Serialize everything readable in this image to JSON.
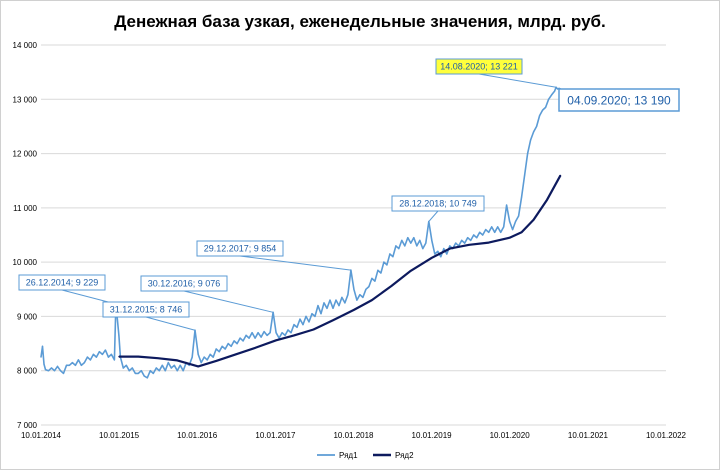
{
  "chart_data": {
    "type": "line",
    "title": "Денежная база узкая, еженедельные значения, млрд. руб.",
    "xlabel": "",
    "ylabel": "",
    "ylim": [
      7000,
      14000
    ],
    "xlim": [
      "2014-01-10",
      "2022-01-10"
    ],
    "y_ticks": [
      "7 000",
      "8 000",
      "9 000",
      "10 000",
      "11 000",
      "12 000",
      "13 000",
      "14 000"
    ],
    "x_ticks": [
      "10.01.2014",
      "10.01.2015",
      "10.01.2016",
      "10.01.2017",
      "10.01.2018",
      "10.01.2019",
      "10.01.2020",
      "10.01.2021",
      "10.01.2022"
    ],
    "grid": "horizontal",
    "legend_position": "bottom",
    "series": [
      {
        "name": "Ряд1",
        "color": "#5b9bd5",
        "points": [
          [
            "2014-01-10",
            8250
          ],
          [
            "2014-01-17",
            8450
          ],
          [
            "2014-01-24",
            8120
          ],
          [
            "2014-01-31",
            8020
          ],
          [
            "2014-02-14",
            8000
          ],
          [
            "2014-02-28",
            8050
          ],
          [
            "2014-03-14",
            8000
          ],
          [
            "2014-03-28",
            8080
          ],
          [
            "2014-04-11",
            8000
          ],
          [
            "2014-04-25",
            7950
          ],
          [
            "2014-05-09",
            8100
          ],
          [
            "2014-05-23",
            8100
          ],
          [
            "2014-06-06",
            8150
          ],
          [
            "2014-06-20",
            8100
          ],
          [
            "2014-07-04",
            8200
          ],
          [
            "2014-07-18",
            8100
          ],
          [
            "2014-08-01",
            8150
          ],
          [
            "2014-08-15",
            8250
          ],
          [
            "2014-08-29",
            8200
          ],
          [
            "2014-09-12",
            8300
          ],
          [
            "2014-09-26",
            8250
          ],
          [
            "2014-10-10",
            8350
          ],
          [
            "2014-10-24",
            8300
          ],
          [
            "2014-11-07",
            8380
          ],
          [
            "2014-11-21",
            8250
          ],
          [
            "2014-12-05",
            8300
          ],
          [
            "2014-12-19",
            8200
          ],
          [
            "2014-12-26",
            9229
          ],
          [
            "2015-01-09",
            8650
          ],
          [
            "2015-01-16",
            8250
          ],
          [
            "2015-01-30",
            8050
          ],
          [
            "2015-02-13",
            8100
          ],
          [
            "2015-02-27",
            8000
          ],
          [
            "2015-03-13",
            8050
          ],
          [
            "2015-03-27",
            7950
          ],
          [
            "2015-04-10",
            7950
          ],
          [
            "2015-04-24",
            8000
          ],
          [
            "2015-05-08",
            7900
          ],
          [
            "2015-05-22",
            7870
          ],
          [
            "2015-06-05",
            8000
          ],
          [
            "2015-06-19",
            7950
          ],
          [
            "2015-07-03",
            8050
          ],
          [
            "2015-07-17",
            8000
          ],
          [
            "2015-07-31",
            8100
          ],
          [
            "2015-08-14",
            8000
          ],
          [
            "2015-08-28",
            8150
          ],
          [
            "2015-09-11",
            8050
          ],
          [
            "2015-09-25",
            8100
          ],
          [
            "2015-10-09",
            8000
          ],
          [
            "2015-10-23",
            8100
          ],
          [
            "2015-11-06",
            8000
          ],
          [
            "2015-11-20",
            8150
          ],
          [
            "2015-12-04",
            8100
          ],
          [
            "2015-12-18",
            8250
          ],
          [
            "2015-12-31",
            8746
          ],
          [
            "2016-01-15",
            8300
          ],
          [
            "2016-01-29",
            8150
          ],
          [
            "2016-02-12",
            8250
          ],
          [
            "2016-02-26",
            8200
          ],
          [
            "2016-03-11",
            8300
          ],
          [
            "2016-03-25",
            8250
          ],
          [
            "2016-04-08",
            8400
          ],
          [
            "2016-04-22",
            8350
          ],
          [
            "2016-05-06",
            8450
          ],
          [
            "2016-05-20",
            8400
          ],
          [
            "2016-06-03",
            8500
          ],
          [
            "2016-06-17",
            8450
          ],
          [
            "2016-07-01",
            8550
          ],
          [
            "2016-07-15",
            8500
          ],
          [
            "2016-07-29",
            8600
          ],
          [
            "2016-08-12",
            8550
          ],
          [
            "2016-08-26",
            8650
          ],
          [
            "2016-09-09",
            8600
          ],
          [
            "2016-09-23",
            8700
          ],
          [
            "2016-10-07",
            8600
          ],
          [
            "2016-10-21",
            8700
          ],
          [
            "2016-11-04",
            8620
          ],
          [
            "2016-11-18",
            8720
          ],
          [
            "2016-12-02",
            8650
          ],
          [
            "2016-12-16",
            8700
          ],
          [
            "2016-12-30",
            9076
          ],
          [
            "2017-01-13",
            8700
          ],
          [
            "2017-01-27",
            8600
          ],
          [
            "2017-02-10",
            8700
          ],
          [
            "2017-02-24",
            8650
          ],
          [
            "2017-03-10",
            8750
          ],
          [
            "2017-03-24",
            8700
          ],
          [
            "2017-04-07",
            8850
          ],
          [
            "2017-04-21",
            8800
          ],
          [
            "2017-05-05",
            8950
          ],
          [
            "2017-05-19",
            8850
          ],
          [
            "2017-06-02",
            9000
          ],
          [
            "2017-06-16",
            8900
          ],
          [
            "2017-06-30",
            9050
          ],
          [
            "2017-07-14",
            9000
          ],
          [
            "2017-07-28",
            9200
          ],
          [
            "2017-08-11",
            9050
          ],
          [
            "2017-08-25",
            9250
          ],
          [
            "2017-09-08",
            9150
          ],
          [
            "2017-09-22",
            9300
          ],
          [
            "2017-10-06",
            9150
          ],
          [
            "2017-10-20",
            9300
          ],
          [
            "2017-11-03",
            9200
          ],
          [
            "2017-11-17",
            9350
          ],
          [
            "2017-12-01",
            9250
          ],
          [
            "2017-12-15",
            9400
          ],
          [
            "2017-12-29",
            9854
          ],
          [
            "2018-01-12",
            9500
          ],
          [
            "2018-01-26",
            9300
          ],
          [
            "2018-02-09",
            9400
          ],
          [
            "2018-02-23",
            9350
          ],
          [
            "2018-03-09",
            9500
          ],
          [
            "2018-03-23",
            9550
          ],
          [
            "2018-04-06",
            9700
          ],
          [
            "2018-04-20",
            9650
          ],
          [
            "2018-05-04",
            9850
          ],
          [
            "2018-05-18",
            9800
          ],
          [
            "2018-06-01",
            10000
          ],
          [
            "2018-06-15",
            9950
          ],
          [
            "2018-06-29",
            10150
          ],
          [
            "2018-07-13",
            10100
          ],
          [
            "2018-07-27",
            10300
          ],
          [
            "2018-08-10",
            10250
          ],
          [
            "2018-08-24",
            10400
          ],
          [
            "2018-09-07",
            10300
          ],
          [
            "2018-09-21",
            10450
          ],
          [
            "2018-10-05",
            10350
          ],
          [
            "2018-10-19",
            10450
          ],
          [
            "2018-11-02",
            10300
          ],
          [
            "2018-11-16",
            10400
          ],
          [
            "2018-11-30",
            10250
          ],
          [
            "2018-12-14",
            10350
          ],
          [
            "2018-12-28",
            10749
          ],
          [
            "2019-01-11",
            10400
          ],
          [
            "2019-01-25",
            10150
          ],
          [
            "2019-02-08",
            10200
          ],
          [
            "2019-02-22",
            10100
          ],
          [
            "2019-03-08",
            10250
          ],
          [
            "2019-03-22",
            10150
          ],
          [
            "2019-04-05",
            10300
          ],
          [
            "2019-04-19",
            10250
          ],
          [
            "2019-05-03",
            10350
          ],
          [
            "2019-05-17",
            10300
          ],
          [
            "2019-05-31",
            10400
          ],
          [
            "2019-06-14",
            10350
          ],
          [
            "2019-06-28",
            10450
          ],
          [
            "2019-07-12",
            10400
          ],
          [
            "2019-07-26",
            10500
          ],
          [
            "2019-08-09",
            10450
          ],
          [
            "2019-08-23",
            10550
          ],
          [
            "2019-09-06",
            10500
          ],
          [
            "2019-09-20",
            10600
          ],
          [
            "2019-10-04",
            10550
          ],
          [
            "2019-10-18",
            10650
          ],
          [
            "2019-11-01",
            10550
          ],
          [
            "2019-11-15",
            10650
          ],
          [
            "2019-11-29",
            10550
          ],
          [
            "2019-12-13",
            10650
          ],
          [
            "2019-12-27",
            11050
          ],
          [
            "2020-01-10",
            10750
          ],
          [
            "2020-01-24",
            10600
          ],
          [
            "2020-02-07",
            10750
          ],
          [
            "2020-02-21",
            10850
          ],
          [
            "2020-03-06",
            11200
          ],
          [
            "2020-03-20",
            11600
          ],
          [
            "2020-04-03",
            12000
          ],
          [
            "2020-04-17",
            12250
          ],
          [
            "2020-05-01",
            12400
          ],
          [
            "2020-05-15",
            12500
          ],
          [
            "2020-05-29",
            12700
          ],
          [
            "2020-06-12",
            12800
          ],
          [
            "2020-06-26",
            12850
          ],
          [
            "2020-07-10",
            13000
          ],
          [
            "2020-07-24",
            13080
          ],
          [
            "2020-08-07",
            13150
          ],
          [
            "2020-08-14",
            13221
          ],
          [
            "2020-08-21",
            13190
          ],
          [
            "2020-08-28",
            13200
          ],
          [
            "2020-09-04",
            13190
          ]
        ]
      },
      {
        "name": "Ряд2",
        "color": "#0d1a5e",
        "points": [
          [
            "2015-01-09",
            8260
          ],
          [
            "2015-04-10",
            8260
          ],
          [
            "2015-07-10",
            8230
          ],
          [
            "2015-10-09",
            8190
          ],
          [
            "2016-01-15",
            8080
          ],
          [
            "2016-04-08",
            8180
          ],
          [
            "2016-07-08",
            8300
          ],
          [
            "2016-10-07",
            8420
          ],
          [
            "2017-01-13",
            8560
          ],
          [
            "2017-04-07",
            8650
          ],
          [
            "2017-07-07",
            8760
          ],
          [
            "2017-10-06",
            8930
          ],
          [
            "2018-01-12",
            9120
          ],
          [
            "2018-04-06",
            9300
          ],
          [
            "2018-07-06",
            9560
          ],
          [
            "2018-10-05",
            9840
          ],
          [
            "2019-01-11",
            10080
          ],
          [
            "2019-04-05",
            10250
          ],
          [
            "2019-07-05",
            10320
          ],
          [
            "2019-10-04",
            10360
          ],
          [
            "2020-01-10",
            10450
          ],
          [
            "2020-03-06",
            10550
          ],
          [
            "2020-05-01",
            10780
          ],
          [
            "2020-07-03",
            11150
          ],
          [
            "2020-09-04",
            11600
          ]
        ]
      }
    ],
    "annotations": [
      {
        "label": "26.12.2014; 9 229",
        "date": "2014-12-26",
        "value": 9229,
        "style": "normal"
      },
      {
        "label": "31.12.2015; 8 746",
        "date": "2015-12-31",
        "value": 8746,
        "style": "normal"
      },
      {
        "label": "30.12.2016; 9 076",
        "date": "2016-12-30",
        "value": 9076,
        "style": "normal"
      },
      {
        "label": "29.12.2017; 9 854",
        "date": "2017-12-29",
        "value": 9854,
        "style": "normal"
      },
      {
        "label": "28.12.2018; 10 749",
        "date": "2018-12-28",
        "value": 10749,
        "style": "normal"
      },
      {
        "label": "14.08.2020; 13 221",
        "date": "2020-08-14",
        "value": 13221,
        "style": "highlight"
      },
      {
        "label": "04.09.2020; 13 190",
        "date": "2020-09-04",
        "value": 13190,
        "style": "big"
      }
    ],
    "colors": {
      "highlight_fill": "#ffff3c",
      "callout_border": "#5b9bd5",
      "callout_text": "#1f5fa8",
      "grid": "#d9d9d9"
    }
  }
}
